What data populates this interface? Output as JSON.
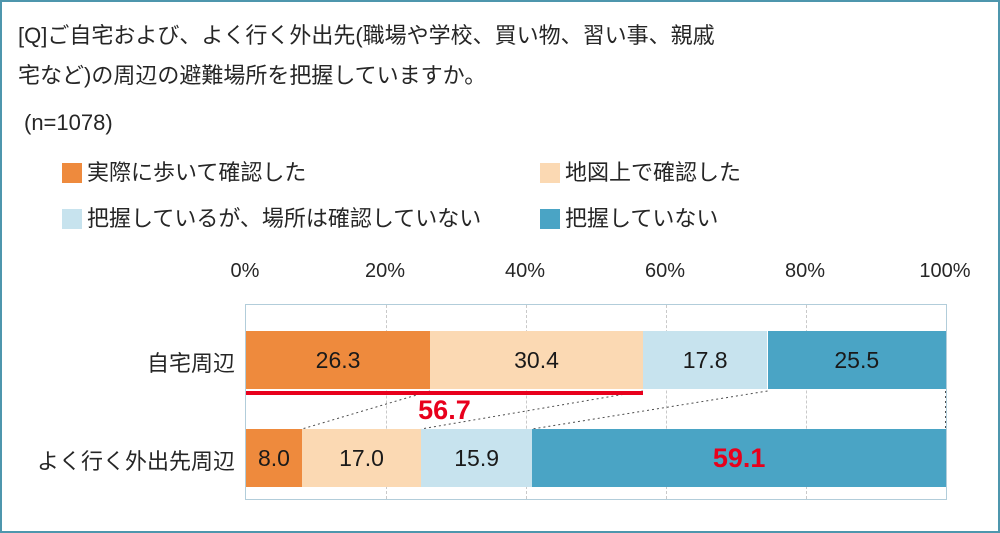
{
  "colors": {
    "frame_border": "#4e96ad",
    "plot_border": "#b2cdda",
    "grid": "#c9c9c9",
    "red": "#e8001c",
    "text": "#262626"
  },
  "title": {
    "line1": "[Q]ご自宅および、よく行く外出先(職場や学校、買い物、習い事、親戚",
    "line2": "宅など)の周辺の避難場所を把握していますか。",
    "n_label": "(n=1078)"
  },
  "legend": {
    "items": [
      {
        "label": "実際に歩いて確認した",
        "color": "#ee8a3d"
      },
      {
        "label": "地図上で確認した",
        "color": "#fbd9b3"
      },
      {
        "label": "把握しているが、場所は確認していない",
        "color": "#c7e3ee"
      },
      {
        "label": "把握していない",
        "color": "#4aa4c5"
      }
    ]
  },
  "chart_data": {
    "type": "bar",
    "stacked": true,
    "orientation": "horizontal",
    "title": "[Q]ご自宅および、よく行く外出先(職場や学校、買い物、習い事、親戚宅など)の周辺の避難場所を把握していますか。",
    "sample_size": "(n=1078)",
    "x_axis": {
      "min": 0,
      "max": 100,
      "ticks": [
        {
          "label": "0%",
          "value": 0
        },
        {
          "label": "20%",
          "value": 20
        },
        {
          "label": "40%",
          "value": 40
        },
        {
          "label": "60%",
          "value": 60
        },
        {
          "label": "80%",
          "value": 80
        },
        {
          "label": "100%",
          "value": 100
        }
      ],
      "grid": "dashed"
    },
    "categories": [
      "自宅周辺",
      "よく行く外出先周辺"
    ],
    "series": [
      {
        "name": "実際に歩いて確認した",
        "color": "#ee8a3d",
        "values": [
          26.3,
          8.0
        ]
      },
      {
        "name": "地図上で確認した",
        "color": "#fbd9b3",
        "values": [
          30.4,
          17.0
        ]
      },
      {
        "name": "把握しているが、場所は確認していない",
        "color": "#c7e3ee",
        "values": [
          17.8,
          15.9
        ]
      },
      {
        "name": "把握していない",
        "color": "#4aa4c5",
        "values": [
          25.5,
          59.1
        ]
      }
    ],
    "cumulative_marker": {
      "category": 0,
      "through_series": 1,
      "label": "56.7"
    },
    "highlight": {
      "category": 1,
      "series": 3,
      "label": "59.1"
    },
    "legend_position": "top"
  }
}
